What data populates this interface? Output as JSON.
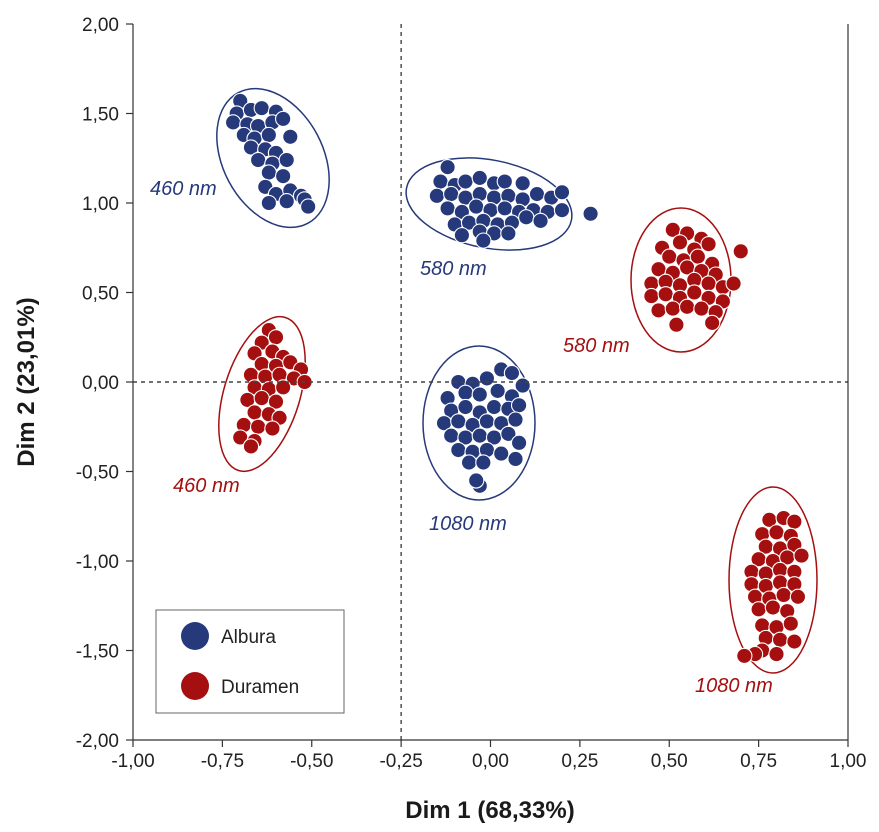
{
  "chart_data": {
    "type": "scatter",
    "title": "",
    "xlabel": "Dim 1 (68,33%)",
    "ylabel": "Dim 2 (23,01%)",
    "xlim": [
      -1.0,
      1.0
    ],
    "ylim": [
      -2.0,
      2.0
    ],
    "x_ticks": [
      "-1,00",
      "-0,75",
      "-0,50",
      "-0,25",
      "0,00",
      "0,25",
      "0,50",
      "0,75",
      "1,00"
    ],
    "y_ticks": [
      "2,00",
      "1,50",
      "1,00",
      "0,50",
      "0,00",
      "-0,50",
      "-1,00",
      "-1,50",
      "-2,00"
    ],
    "reference_lines": {
      "x": -0.25,
      "y": 0.0
    },
    "grid": false,
    "legend_position": "bottom-left",
    "colors": {
      "Albura": "#26397a",
      "Duramen": "#a50f0f"
    },
    "legend": [
      "Albura",
      "Duramen"
    ],
    "series": [
      {
        "name": "Albura",
        "clusters": [
          {
            "label": "460 nm",
            "center": [
              -0.62,
              1.27
            ],
            "points": [
              [
                -0.7,
                1.57
              ],
              [
                -0.71,
                1.5
              ],
              [
                -0.67,
                1.52
              ],
              [
                -0.64,
                1.53
              ],
              [
                -0.6,
                1.51
              ],
              [
                -0.72,
                1.45
              ],
              [
                -0.68,
                1.44
              ],
              [
                -0.65,
                1.43
              ],
              [
                -0.61,
                1.45
              ],
              [
                -0.58,
                1.47
              ],
              [
                -0.69,
                1.38
              ],
              [
                -0.66,
                1.36
              ],
              [
                -0.62,
                1.38
              ],
              [
                -0.56,
                1.37
              ],
              [
                -0.67,
                1.31
              ],
              [
                -0.63,
                1.3
              ],
              [
                -0.6,
                1.28
              ],
              [
                -0.65,
                1.24
              ],
              [
                -0.61,
                1.22
              ],
              [
                -0.57,
                1.24
              ],
              [
                -0.62,
                1.17
              ],
              [
                -0.58,
                1.15
              ],
              [
                -0.63,
                1.09
              ],
              [
                -0.6,
                1.05
              ],
              [
                -0.56,
                1.07
              ],
              [
                -0.53,
                1.04
              ],
              [
                -0.62,
                1.0
              ],
              [
                -0.57,
                1.01
              ],
              [
                -0.52,
                1.02
              ],
              [
                -0.51,
                0.98
              ]
            ]
          },
          {
            "label": "580 nm",
            "center": [
              0.06,
              1.0
            ],
            "points": [
              [
                -0.12,
                1.2
              ],
              [
                -0.14,
                1.12
              ],
              [
                -0.1,
                1.1
              ],
              [
                -0.07,
                1.12
              ],
              [
                -0.03,
                1.14
              ],
              [
                0.01,
                1.11
              ],
              [
                0.04,
                1.12
              ],
              [
                0.09,
                1.11
              ],
              [
                -0.15,
                1.04
              ],
              [
                -0.11,
                1.05
              ],
              [
                -0.07,
                1.03
              ],
              [
                -0.03,
                1.05
              ],
              [
                0.01,
                1.03
              ],
              [
                0.05,
                1.04
              ],
              [
                0.09,
                1.02
              ],
              [
                0.13,
                1.05
              ],
              [
                0.17,
                1.03
              ],
              [
                0.2,
                1.06
              ],
              [
                -0.12,
                0.97
              ],
              [
                -0.08,
                0.95
              ],
              [
                -0.04,
                0.98
              ],
              [
                0.0,
                0.96
              ],
              [
                0.04,
                0.97
              ],
              [
                0.08,
                0.95
              ],
              [
                0.12,
                0.96
              ],
              [
                0.16,
                0.95
              ],
              [
                0.2,
                0.96
              ],
              [
                -0.1,
                0.88
              ],
              [
                -0.06,
                0.89
              ],
              [
                -0.02,
                0.9
              ],
              [
                0.02,
                0.88
              ],
              [
                0.06,
                0.89
              ],
              [
                0.1,
                0.92
              ],
              [
                0.14,
                0.9
              ],
              [
                -0.08,
                0.82
              ],
              [
                -0.03,
                0.84
              ],
              [
                0.01,
                0.83
              ],
              [
                0.05,
                0.83
              ],
              [
                -0.02,
                0.79
              ],
              [
                0.28,
                0.94
              ]
            ]
          },
          {
            "label": "1080 nm",
            "center": [
              -0.02,
              -0.23
            ],
            "points": [
              [
                -0.09,
                0.0
              ],
              [
                -0.05,
                -0.01
              ],
              [
                -0.01,
                0.02
              ],
              [
                0.03,
                0.07
              ],
              [
                0.06,
                0.05
              ],
              [
                0.09,
                -0.02
              ],
              [
                -0.12,
                -0.09
              ],
              [
                -0.07,
                -0.06
              ],
              [
                -0.03,
                -0.07
              ],
              [
                0.02,
                -0.05
              ],
              [
                0.06,
                -0.08
              ],
              [
                -0.11,
                -0.16
              ],
              [
                -0.07,
                -0.14
              ],
              [
                -0.03,
                -0.17
              ],
              [
                0.01,
                -0.14
              ],
              [
                0.05,
                -0.15
              ],
              [
                0.08,
                -0.13
              ],
              [
                -0.13,
                -0.23
              ],
              [
                -0.09,
                -0.22
              ],
              [
                -0.05,
                -0.24
              ],
              [
                -0.01,
                -0.22
              ],
              [
                0.03,
                -0.23
              ],
              [
                0.07,
                -0.21
              ],
              [
                -0.11,
                -0.3
              ],
              [
                -0.07,
                -0.31
              ],
              [
                -0.03,
                -0.3
              ],
              [
                0.01,
                -0.31
              ],
              [
                0.05,
                -0.29
              ],
              [
                0.08,
                -0.34
              ],
              [
                -0.09,
                -0.38
              ],
              [
                -0.05,
                -0.39
              ],
              [
                -0.01,
                -0.38
              ],
              [
                0.03,
                -0.4
              ],
              [
                0.07,
                -0.43
              ],
              [
                -0.06,
                -0.45
              ],
              [
                -0.02,
                -0.45
              ],
              [
                -0.03,
                -0.58
              ],
              [
                -0.04,
                -0.55
              ]
            ]
          }
        ]
      },
      {
        "name": "Duramen",
        "clusters": [
          {
            "label": "460 nm",
            "center": [
              -0.62,
              -0.01
            ],
            "points": [
              [
                -0.62,
                0.29
              ],
              [
                -0.64,
                0.22
              ],
              [
                -0.6,
                0.25
              ],
              [
                -0.66,
                0.16
              ],
              [
                -0.61,
                0.17
              ],
              [
                -0.58,
                0.14
              ],
              [
                -0.64,
                0.1
              ],
              [
                -0.6,
                0.09
              ],
              [
                -0.56,
                0.11
              ],
              [
                -0.53,
                0.07
              ],
              [
                -0.67,
                0.04
              ],
              [
                -0.63,
                0.03
              ],
              [
                -0.59,
                0.04
              ],
              [
                -0.55,
                0.02
              ],
              [
                -0.52,
                0.0
              ],
              [
                -0.66,
                -0.03
              ],
              [
                -0.62,
                -0.04
              ],
              [
                -0.58,
                -0.03
              ],
              [
                -0.68,
                -0.1
              ],
              [
                -0.64,
                -0.09
              ],
              [
                -0.6,
                -0.11
              ],
              [
                -0.66,
                -0.17
              ],
              [
                -0.62,
                -0.18
              ],
              [
                -0.59,
                -0.2
              ],
              [
                -0.69,
                -0.24
              ],
              [
                -0.65,
                -0.25
              ],
              [
                -0.61,
                -0.26
              ],
              [
                -0.7,
                -0.31
              ],
              [
                -0.66,
                -0.33
              ],
              [
                -0.67,
                -0.36
              ]
            ]
          },
          {
            "label": "580 nm",
            "center": [
              0.57,
              0.57
            ],
            "points": [
              [
                0.51,
                0.85
              ],
              [
                0.55,
                0.83
              ],
              [
                0.59,
                0.8
              ],
              [
                0.48,
                0.75
              ],
              [
                0.53,
                0.78
              ],
              [
                0.57,
                0.74
              ],
              [
                0.61,
                0.77
              ],
              [
                0.7,
                0.73
              ],
              [
                0.5,
                0.7
              ],
              [
                0.54,
                0.68
              ],
              [
                0.58,
                0.7
              ],
              [
                0.62,
                0.66
              ],
              [
                0.47,
                0.63
              ],
              [
                0.51,
                0.61
              ],
              [
                0.55,
                0.64
              ],
              [
                0.59,
                0.62
              ],
              [
                0.63,
                0.6
              ],
              [
                0.45,
                0.55
              ],
              [
                0.49,
                0.56
              ],
              [
                0.53,
                0.54
              ],
              [
                0.57,
                0.57
              ],
              [
                0.61,
                0.55
              ],
              [
                0.65,
                0.53
              ],
              [
                0.68,
                0.55
              ],
              [
                0.45,
                0.48
              ],
              [
                0.49,
                0.49
              ],
              [
                0.53,
                0.47
              ],
              [
                0.57,
                0.5
              ],
              [
                0.61,
                0.47
              ],
              [
                0.65,
                0.45
              ],
              [
                0.47,
                0.4
              ],
              [
                0.51,
                0.41
              ],
              [
                0.55,
                0.42
              ],
              [
                0.59,
                0.41
              ],
              [
                0.63,
                0.39
              ],
              [
                0.52,
                0.32
              ],
              [
                0.62,
                0.33
              ]
            ]
          },
          {
            "label": "1080 nm",
            "center": [
              0.8,
              -1.13
            ],
            "points": [
              [
                0.78,
                -0.77
              ],
              [
                0.82,
                -0.76
              ],
              [
                0.85,
                -0.78
              ],
              [
                0.76,
                -0.85
              ],
              [
                0.8,
                -0.84
              ],
              [
                0.84,
                -0.86
              ],
              [
                0.77,
                -0.92
              ],
              [
                0.81,
                -0.93
              ],
              [
                0.85,
                -0.91
              ],
              [
                0.75,
                -0.99
              ],
              [
                0.79,
                -1.0
              ],
              [
                0.83,
                -0.98
              ],
              [
                0.87,
                -0.97
              ],
              [
                0.73,
                -1.06
              ],
              [
                0.77,
                -1.07
              ],
              [
                0.81,
                -1.05
              ],
              [
                0.85,
                -1.06
              ],
              [
                0.73,
                -1.13
              ],
              [
                0.77,
                -1.14
              ],
              [
                0.81,
                -1.12
              ],
              [
                0.85,
                -1.13
              ],
              [
                0.74,
                -1.2
              ],
              [
                0.78,
                -1.21
              ],
              [
                0.82,
                -1.19
              ],
              [
                0.86,
                -1.2
              ],
              [
                0.75,
                -1.27
              ],
              [
                0.79,
                -1.26
              ],
              [
                0.83,
                -1.28
              ],
              [
                0.76,
                -1.36
              ],
              [
                0.8,
                -1.37
              ],
              [
                0.84,
                -1.35
              ],
              [
                0.77,
                -1.43
              ],
              [
                0.81,
                -1.44
              ],
              [
                0.85,
                -1.45
              ],
              [
                0.76,
                -1.5
              ],
              [
                0.8,
                -1.52
              ],
              [
                0.74,
                -1.52
              ],
              [
                0.71,
                -1.53
              ]
            ]
          }
        ]
      }
    ]
  }
}
